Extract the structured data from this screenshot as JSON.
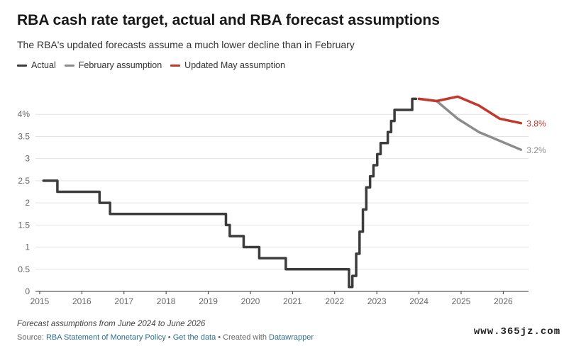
{
  "header": {
    "title": "RBA cash rate target, actual and RBA forecast assumptions",
    "subtitle": "The RBA's updated forecasts assume a much lower decline than in February"
  },
  "legend": [
    {
      "label": "Actual",
      "color": "#3c3c3c"
    },
    {
      "label": "February assumption",
      "color": "#8c8c8c"
    },
    {
      "label": "Updated May assumption",
      "color": "#c0392b"
    }
  ],
  "footer": {
    "note": "Forecast assumptions from June 2024 to June 2026",
    "source_prefix": "Source: ",
    "source_link": "RBA Statement of Monetary Policy",
    "sep1": " • ",
    "data_link": "Get the data",
    "sep2": " • Created with ",
    "created_link": "Datawrapper"
  },
  "watermark": "www.365jz.com",
  "chart_data": {
    "type": "line",
    "title": "RBA cash rate target, actual and RBA forecast assumptions",
    "subtitle": "The RBA's updated forecasts assume a much lower decline than in February",
    "xlim": [
      2014.9,
      2026.6
    ],
    "ylim": [
      0,
      4.5
    ],
    "y_ticks": [
      0,
      0.5,
      1,
      1.5,
      2,
      2.5,
      3,
      3.5,
      4
    ],
    "y_tick_labels": [
      "0",
      "0.5",
      "1",
      "1.5",
      "2",
      "2.5",
      "3",
      "3.5",
      "4%"
    ],
    "x_ticks": [
      2015,
      2016,
      2017,
      2018,
      2019,
      2020,
      2021,
      2022,
      2023,
      2024,
      2025,
      2026
    ],
    "x_tick_labels": [
      "2015",
      "2016",
      "2017",
      "2018",
      "2019",
      "2020",
      "2021",
      "2022",
      "2023",
      "2024",
      "2025",
      "2026"
    ],
    "grid": true,
    "legend_position": "top-left",
    "series": [
      {
        "name": "Actual",
        "color": "#3c3c3c",
        "step": true,
        "points": [
          [
            2015.09,
            2.5
          ],
          [
            2015.42,
            2.25
          ],
          [
            2016.42,
            2.0
          ],
          [
            2016.67,
            1.75
          ],
          [
            2019.42,
            1.5
          ],
          [
            2019.51,
            1.25
          ],
          [
            2019.84,
            1.0
          ],
          [
            2020.21,
            0.75
          ],
          [
            2020.84,
            0.5
          ],
          [
            2022.34,
            0.1
          ],
          [
            2022.42,
            0.35
          ],
          [
            2022.51,
            0.85
          ],
          [
            2022.59,
            1.35
          ],
          [
            2022.67,
            1.85
          ],
          [
            2022.75,
            2.35
          ],
          [
            2022.84,
            2.6
          ],
          [
            2022.92,
            2.85
          ],
          [
            2023.01,
            3.1
          ],
          [
            2023.09,
            3.35
          ],
          [
            2023.26,
            3.6
          ],
          [
            2023.34,
            3.85
          ],
          [
            2023.42,
            4.1
          ],
          [
            2023.84,
            4.35
          ],
          [
            2023.93,
            4.35
          ]
        ]
      },
      {
        "name": "February assumption",
        "color": "#8c8c8c",
        "step": false,
        "points": [
          [
            2024.0,
            4.35
          ],
          [
            2024.42,
            4.3
          ],
          [
            2024.92,
            3.9
          ],
          [
            2025.42,
            3.6
          ],
          [
            2025.92,
            3.4
          ],
          [
            2026.42,
            3.2
          ]
        ],
        "end_label": "3.2%"
      },
      {
        "name": "Updated May assumption",
        "color": "#c0392b",
        "step": false,
        "points": [
          [
            2024.0,
            4.35
          ],
          [
            2024.42,
            4.3
          ],
          [
            2024.92,
            4.4
          ],
          [
            2025.42,
            4.2
          ],
          [
            2025.92,
            3.9
          ],
          [
            2026.42,
            3.8
          ]
        ],
        "end_label": "3.8%"
      }
    ]
  }
}
